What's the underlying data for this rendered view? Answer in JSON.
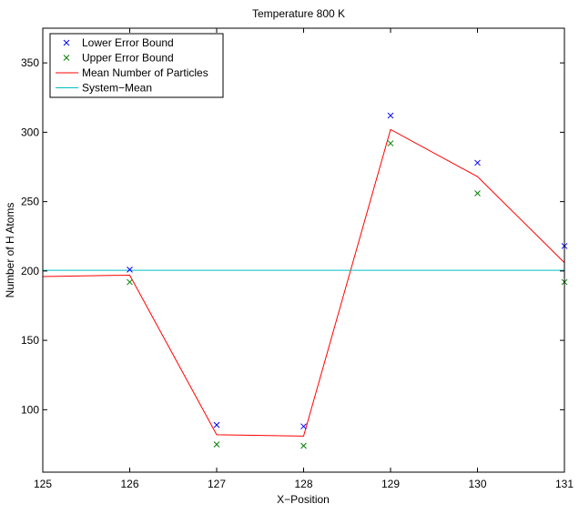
{
  "chart_data": {
    "type": "line",
    "title": "Temperature 800 K",
    "xlabel": "X−Position",
    "ylabel": "Number of H Atoms",
    "xlim": [
      125,
      131
    ],
    "ylim": [
      55,
      375
    ],
    "xticks": [
      125,
      126,
      127,
      128,
      129,
      130,
      131
    ],
    "yticks": [
      100,
      150,
      200,
      250,
      300,
      350
    ],
    "grid": false,
    "legend_position": "top-left",
    "series": [
      {
        "name": "Lower Error Bound",
        "kind": "marker",
        "marker": "x",
        "color": "#0000ff",
        "x": [
          126,
          127,
          128,
          129,
          130,
          131
        ],
        "y": [
          201,
          89,
          88,
          312,
          278,
          218
        ]
      },
      {
        "name": "Upper Error Bound",
        "kind": "marker",
        "marker": "x",
        "color": "#008000",
        "x": [
          126,
          127,
          128,
          129,
          130,
          131
        ],
        "y": [
          192,
          75,
          74,
          292,
          256,
          192
        ]
      },
      {
        "name": "Mean Number of Particles",
        "kind": "line",
        "color": "#ff0000",
        "x": [
          125,
          126,
          127,
          128,
          129,
          130,
          131
        ],
        "y": [
          196,
          197,
          82,
          81,
          302,
          268,
          206
        ]
      },
      {
        "name": "System−Mean",
        "kind": "line",
        "color": "#00bfbf",
        "x": [
          125,
          131
        ],
        "y": [
          200.5,
          200.5
        ]
      }
    ]
  }
}
